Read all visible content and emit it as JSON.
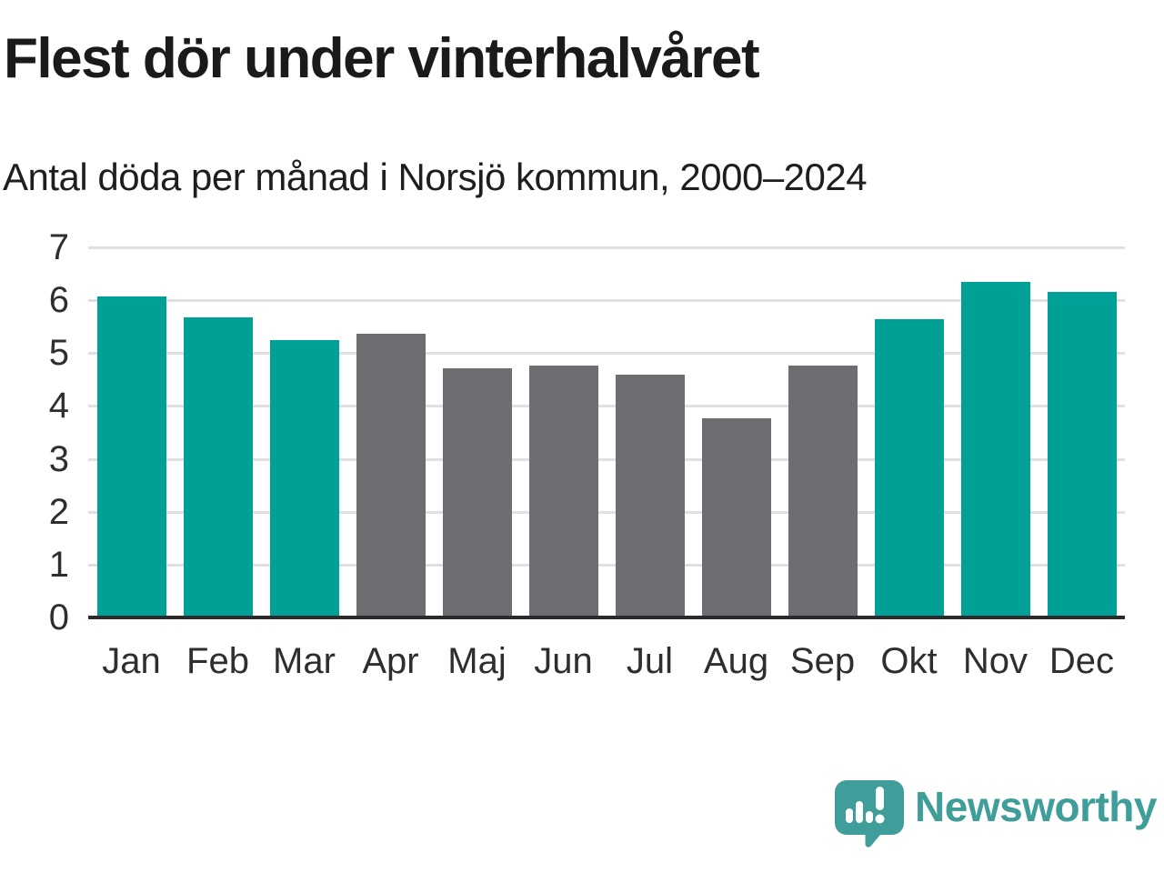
{
  "chart_data": {
    "type": "bar",
    "title": "Flest dör under vinterhalvåret",
    "subtitle": "Antal döda per månad i Norsjö kommun, 2000–2024",
    "categories": [
      "Jan",
      "Feb",
      "Mar",
      "Apr",
      "Maj",
      "Jun",
      "Jul",
      "Aug",
      "Sep",
      "Okt",
      "Nov",
      "Dec"
    ],
    "values": [
      6.08,
      5.67,
      5.25,
      5.36,
      4.72,
      4.77,
      4.6,
      3.77,
      4.77,
      5.64,
      6.35,
      6.16
    ],
    "winter_months": [
      true,
      true,
      true,
      false,
      false,
      false,
      false,
      false,
      false,
      true,
      true,
      true
    ],
    "xlabel": "",
    "ylabel": "",
    "ylim": [
      0,
      7
    ],
    "yticks": [
      0,
      1,
      2,
      3,
      4,
      5,
      6,
      7
    ],
    "grid": true,
    "legend": "none",
    "colors": {
      "winter": "#00a096",
      "summer": "#6e6e72",
      "gridline": "#e0e0e0",
      "axis_line": "#2b2b2e",
      "tick_text": "#2e2e2e"
    }
  },
  "footer": {
    "brand": "Newsworthy",
    "brand_color": "#3f9e99"
  }
}
